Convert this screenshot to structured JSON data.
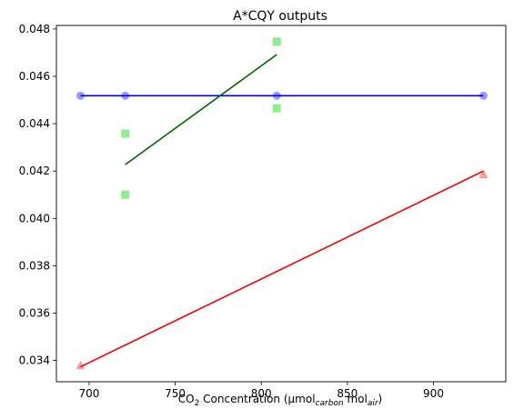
{
  "chart_data": {
    "type": "scatter",
    "title": "A*CQY outputs",
    "xlabel": {
      "prefix": "CO",
      "sub": "2",
      "middle": " Concentration (μmol",
      "sub2": "carbon",
      "middle2": " mol",
      "sub3": "air",
      "suffix": ")"
    },
    "ylabel": "",
    "xlim": [
      681,
      942
    ],
    "ylim": [
      0.0331,
      0.04815
    ],
    "xticks": [
      700,
      750,
      800,
      850,
      900
    ],
    "yticks": [
      0.034,
      0.036,
      0.038,
      0.04,
      0.042,
      0.044,
      0.046,
      0.048
    ],
    "ytick_labels": [
      "0.034",
      "0.036",
      "0.038",
      "0.040",
      "0.042",
      "0.044",
      "0.046",
      "0.048"
    ],
    "series": [
      {
        "marker": "circle",
        "color": "#9a9aff",
        "points": [
          [
            695,
            0.04518
          ],
          [
            721,
            0.04518
          ],
          [
            809,
            0.04518
          ],
          [
            929,
            0.04518
          ]
        ],
        "fit_color": "#0000ee",
        "fit": [
          [
            695,
            0.04518
          ],
          [
            929,
            0.04518
          ]
        ]
      },
      {
        "marker": "square",
        "color": "#90ee90",
        "points": [
          [
            721,
            0.04358
          ],
          [
            721,
            0.041
          ],
          [
            809,
            0.04746
          ],
          [
            809,
            0.04465
          ]
        ],
        "fit_color": "#006400",
        "fit": [
          [
            721,
            0.04227
          ],
          [
            809,
            0.04692
          ]
        ]
      },
      {
        "marker": "triangle",
        "color": "#ff9a9a",
        "points": [
          [
            695,
            0.03378
          ],
          [
            929,
            0.04185
          ]
        ],
        "fit_color": "#ee0000",
        "fit": [
          [
            695,
            0.03373
          ],
          [
            929,
            0.042
          ]
        ]
      }
    ]
  }
}
